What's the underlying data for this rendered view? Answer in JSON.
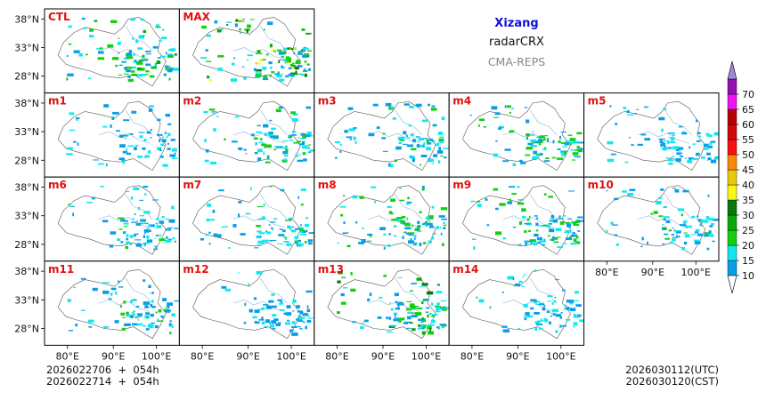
{
  "header": {
    "region": "Xizang",
    "product": "radarCRX",
    "model": "CMA-REPS"
  },
  "panels": [
    {
      "label": "CTL",
      "intensity": 0.7
    },
    {
      "label": "MAX",
      "intensity": 1.0
    },
    {
      "label": "m1",
      "intensity": 0.4
    },
    {
      "label": "m2",
      "intensity": 0.55
    },
    {
      "label": "m3",
      "intensity": 0.5
    },
    {
      "label": "m4",
      "intensity": 0.6
    },
    {
      "label": "m5",
      "intensity": 0.45
    },
    {
      "label": "m6",
      "intensity": 0.5
    },
    {
      "label": "m7",
      "intensity": 0.5
    },
    {
      "label": "m8",
      "intensity": 0.6
    },
    {
      "label": "m9",
      "intensity": 0.65
    },
    {
      "label": "m10",
      "intensity": 0.5
    },
    {
      "label": "m11",
      "intensity": 0.6
    },
    {
      "label": "m12",
      "intensity": 0.35
    },
    {
      "label": "m13",
      "intensity": 0.85
    },
    {
      "label": "m14",
      "intensity": 0.4
    }
  ],
  "axes": {
    "lat_ticks": [
      "38°N",
      "33°N",
      "28°N"
    ],
    "lon_ticks": [
      "80°E",
      "90°E",
      "100°E"
    ]
  },
  "colorbar": {
    "levels": [
      "10",
      "15",
      "20",
      "25",
      "30",
      "35",
      "40",
      "45",
      "50",
      "55",
      "60",
      "65",
      "70"
    ],
    "colors": [
      "#0a9ee8",
      "#10e8f0",
      "#10d010",
      "#08a808",
      "#087808",
      "#f8f810",
      "#e8c808",
      "#f88808",
      "#f81010",
      "#d00808",
      "#b80000",
      "#f010f0",
      "#9010b0",
      "#a088d8"
    ]
  },
  "init_info": {
    "line1": "2026022706  +  054h",
    "line2": "2026022714  +  054h"
  },
  "valid_info": {
    "utc": "2026030112(UTC)",
    "cst": "2026030120(CST)"
  }
}
